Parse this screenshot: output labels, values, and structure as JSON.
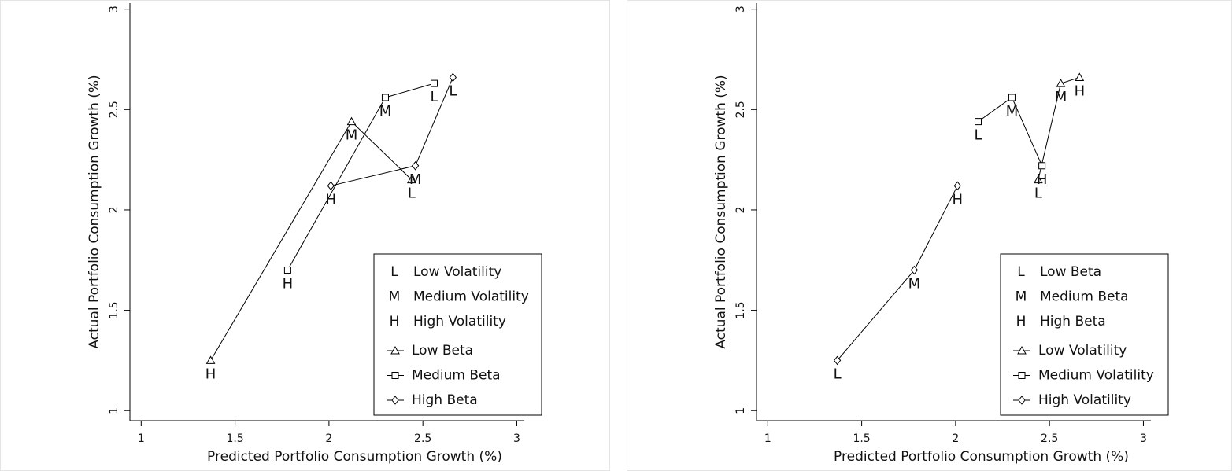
{
  "chart_data": [
    {
      "type": "line",
      "xlabel": "Predicted Portfolio Consumption Growth (%)",
      "ylabel": "Actual Portfolio Consumption Growth (%)",
      "xlim": [
        0.94,
        3.04
      ],
      "ylim": [
        0.95,
        3.03
      ],
      "xticks": [
        1,
        1.5,
        2,
        2.5,
        3
      ],
      "yticks": [
        1,
        1.5,
        2,
        2.5,
        3
      ],
      "legend": "lower right",
      "letter_legend": [
        {
          "letter": "L",
          "text": "Low Volatility"
        },
        {
          "letter": "M",
          "text": "Medium Volatility"
        },
        {
          "letter": "H",
          "text": "High Volatility"
        }
      ],
      "series": [
        {
          "name": "Low Beta",
          "marker": "triangle",
          "color": "#000000",
          "x": [
            1.37,
            2.12,
            2.44
          ],
          "values": [
            1.25,
            2.44,
            2.15
          ],
          "point_labels": [
            "H",
            "M",
            "L"
          ]
        },
        {
          "name": "Medium Beta",
          "marker": "square",
          "color": "#000000",
          "x": [
            1.78,
            2.3,
            2.56
          ],
          "values": [
            1.7,
            2.56,
            2.63
          ],
          "point_labels": [
            "H",
            "M",
            "L"
          ]
        },
        {
          "name": "High Beta",
          "marker": "diamond",
          "color": "#000000",
          "x": [
            2.01,
            2.46,
            2.66
          ],
          "values": [
            2.12,
            2.22,
            2.66
          ],
          "point_labels": [
            "H",
            "M",
            "L"
          ]
        }
      ]
    },
    {
      "type": "line",
      "xlabel": "Predicted Portfolio Consumption Growth (%)",
      "ylabel": "Actual Portfolio Consumption Growth (%)",
      "xlim": [
        0.94,
        3.04
      ],
      "ylim": [
        0.95,
        3.03
      ],
      "xticks": [
        1,
        1.5,
        2,
        2.5,
        3
      ],
      "yticks": [
        1,
        1.5,
        2,
        2.5,
        3
      ],
      "legend": "lower right",
      "letter_legend": [
        {
          "letter": "L",
          "text": "Low Beta"
        },
        {
          "letter": "M",
          "text": "Medium Beta"
        },
        {
          "letter": "H",
          "text": "High Beta"
        }
      ],
      "series": [
        {
          "name": "Low Volatility",
          "marker": "triangle",
          "color": "#000000",
          "x": [
            2.44,
            2.56,
            2.66
          ],
          "values": [
            2.15,
            2.63,
            2.66
          ],
          "point_labels": [
            "L",
            "M",
            "H"
          ]
        },
        {
          "name": "Medium Volatility",
          "marker": "square",
          "color": "#000000",
          "x": [
            2.12,
            2.3,
            2.46
          ],
          "values": [
            2.44,
            2.56,
            2.22
          ],
          "point_labels": [
            "L",
            "M",
            "H"
          ]
        },
        {
          "name": "High Volatility",
          "marker": "diamond",
          "color": "#000000",
          "x": [
            1.37,
            1.78,
            2.01
          ],
          "values": [
            1.25,
            1.7,
            2.12
          ],
          "point_labels": [
            "L",
            "M",
            "H"
          ]
        }
      ]
    }
  ]
}
